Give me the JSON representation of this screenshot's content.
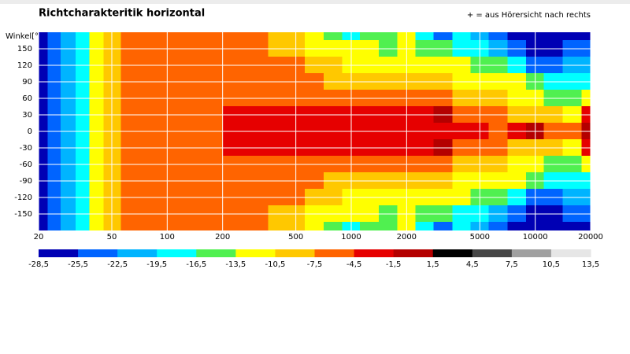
{
  "chart_data": {
    "type": "heatmap",
    "title": "Richtcharakteritik horizontal",
    "annotation": "+ = aus Hörersicht nach rechts",
    "y_label": "Winkel[°]",
    "x": [
      21,
      24,
      29,
      35,
      41,
      50,
      63,
      100,
      160,
      250,
      315,
      400,
      500,
      630,
      800,
      1000,
      1250,
      1600,
      2000,
      2500,
      3150,
      4000,
      5000,
      6300,
      8000,
      10000,
      12500,
      16000,
      20000
    ],
    "y": [
      180,
      150,
      120,
      90,
      60,
      30,
      0,
      -30,
      -60,
      -90,
      -120,
      -150,
      -180
    ],
    "z": [
      [
        -27,
        -24,
        -21,
        -18,
        -12,
        -9,
        -6,
        -6,
        -6,
        -6,
        -6,
        -9,
        -9,
        -12,
        -15,
        -18,
        -15,
        -15,
        -12,
        -18,
        -24,
        -18,
        -21,
        -24,
        -27,
        -27,
        -27,
        -27,
        -27
      ],
      [
        -27,
        -24,
        -21,
        -18,
        -12,
        -9,
        -6,
        -6,
        -6,
        -6,
        -6,
        -9,
        -9,
        -12,
        -12,
        -12,
        -12,
        -15,
        -12,
        -15,
        -15,
        -18,
        -18,
        -21,
        -24,
        -27,
        -27,
        -24,
        -24
      ],
      [
        -27,
        -24,
        -21,
        -18,
        -12,
        -9,
        -6,
        -6,
        -6,
        -6,
        -6,
        -6,
        -6,
        -9,
        -9,
        -12,
        -12,
        -12,
        -12,
        -12,
        -12,
        -12,
        -15,
        -15,
        -18,
        -24,
        -24,
        -21,
        -21
      ],
      [
        -27,
        -24,
        -21,
        -18,
        -12,
        -9,
        -6,
        -6,
        -6,
        -6,
        -6,
        -6,
        -6,
        -6,
        -9,
        -9,
        -9,
        -9,
        -9,
        -9,
        -9,
        -12,
        -12,
        -12,
        -12,
        -15,
        -18,
        -18,
        -18
      ],
      [
        -27,
        -24,
        -21,
        -18,
        -12,
        -9,
        -6,
        -6,
        -6,
        -6,
        -6,
        -6,
        -6,
        -6,
        -6,
        -6,
        -6,
        -6,
        -6,
        -6,
        -6,
        -9,
        -9,
        -9,
        -12,
        -12,
        -15,
        -15,
        -12
      ],
      [
        -27,
        -24,
        -21,
        -18,
        -12,
        -9,
        -6,
        -6,
        -6,
        -3,
        -3,
        -3,
        -3,
        -3,
        -3,
        -3,
        -3,
        -3,
        -3,
        -3,
        0,
        -6,
        -6,
        -6,
        -9,
        -9,
        -9,
        -12,
        -3
      ],
      [
        -27,
        -24,
        -21,
        -18,
        -12,
        -9,
        -6,
        -6,
        -6,
        -3,
        -3,
        -3,
        -3,
        -3,
        -3,
        -3,
        -3,
        -3,
        -3,
        -3,
        -3,
        -3,
        -3,
        -6,
        -3,
        0,
        -6,
        -6,
        0
      ],
      [
        -27,
        -24,
        -21,
        -18,
        -12,
        -9,
        -6,
        -6,
        -6,
        -3,
        -3,
        -3,
        -3,
        -3,
        -3,
        -3,
        -3,
        -3,
        -3,
        -3,
        0,
        -6,
        -6,
        -6,
        -9,
        -9,
        -9,
        -12,
        -3
      ],
      [
        -27,
        -24,
        -21,
        -18,
        -12,
        -9,
        -6,
        -6,
        -6,
        -6,
        -6,
        -6,
        -6,
        -6,
        -6,
        -6,
        -6,
        -6,
        -6,
        -6,
        -6,
        -9,
        -9,
        -9,
        -12,
        -12,
        -15,
        -15,
        -12
      ],
      [
        -27,
        -24,
        -21,
        -18,
        -12,
        -9,
        -6,
        -6,
        -6,
        -6,
        -6,
        -6,
        -6,
        -6,
        -9,
        -9,
        -9,
        -9,
        -9,
        -9,
        -9,
        -12,
        -12,
        -12,
        -12,
        -15,
        -18,
        -18,
        -18
      ],
      [
        -27,
        -24,
        -21,
        -18,
        -12,
        -9,
        -6,
        -6,
        -6,
        -6,
        -6,
        -6,
        -6,
        -9,
        -9,
        -12,
        -12,
        -12,
        -12,
        -12,
        -12,
        -12,
        -15,
        -15,
        -18,
        -24,
        -24,
        -21,
        -21
      ],
      [
        -27,
        -24,
        -21,
        -18,
        -12,
        -9,
        -6,
        -6,
        -6,
        -6,
        -6,
        -9,
        -9,
        -12,
        -12,
        -12,
        -12,
        -15,
        -12,
        -15,
        -15,
        -18,
        -18,
        -21,
        -24,
        -27,
        -27,
        -24,
        -24
      ],
      [
        -27,
        -24,
        -21,
        -18,
        -12,
        -9,
        -6,
        -6,
        -6,
        -6,
        -6,
        -9,
        -9,
        -12,
        -15,
        -18,
        -15,
        -15,
        -12,
        -18,
        -24,
        -18,
        -21,
        -24,
        -27,
        -27,
        -27,
        -27,
        -27
      ]
    ],
    "xlim": [
      20,
      20000
    ],
    "xscale": "log",
    "xticks": [
      20,
      50,
      100,
      200,
      500,
      1000,
      2000,
      5000,
      10000,
      20000
    ],
    "ylim": [
      -180,
      180
    ],
    "yticks": [
      150,
      120,
      90,
      60,
      30,
      0,
      -30,
      -60,
      -90,
      -120,
      -150
    ],
    "grid": true,
    "colorbar": {
      "ticks": [
        {
          "value": -28.5,
          "label": "-28,5"
        },
        {
          "value": -25.5,
          "label": "-25,5"
        },
        {
          "value": -22.5,
          "label": "-22,5"
        },
        {
          "value": -19.5,
          "label": "-19,5"
        },
        {
          "value": -16.5,
          "label": "-16,5"
        },
        {
          "value": -13.5,
          "label": "-13,5"
        },
        {
          "value": -10.5,
          "label": "-10,5"
        },
        {
          "value": -7.5,
          "label": "-7,5"
        },
        {
          "value": -4.5,
          "label": "-4,5"
        },
        {
          "value": -1.5,
          "label": "-1,5"
        },
        {
          "value": 1.5,
          "label": "1,5"
        },
        {
          "value": 4.5,
          "label": "4,5"
        },
        {
          "value": 7.5,
          "label": "7,5"
        },
        {
          "value": 10.5,
          "label": "10,5"
        },
        {
          "value": 13.5,
          "label": "13,5"
        }
      ],
      "colors": [
        "#0000b4",
        "#0064ff",
        "#00b4ff",
        "#00ffff",
        "#50f050",
        "#ffff00",
        "#ffc800",
        "#ff6400",
        "#e60000",
        "#b40000",
        "#000000",
        "#464646",
        "#a0a0a0",
        "#e6e6e6"
      ]
    }
  }
}
